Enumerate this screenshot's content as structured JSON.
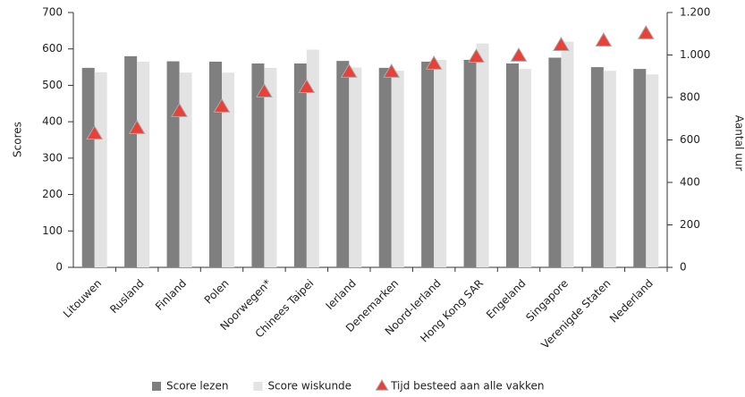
{
  "chart_data": {
    "type": "bar",
    "ylabel": "Scores",
    "y2label": "Aantal uur",
    "categories": [
      "Litouwen",
      "Rusland",
      "Finland",
      "Polen",
      "Noorwegen*",
      "Chinees Taipei",
      "Ierland",
      "Denemarken",
      "Noord-Ierland",
      "Hong Kong SAR",
      "Engeland",
      "Singapore",
      "Verenigde Staten",
      "Nederland"
    ],
    "series": [
      {
        "name": "Score lezen",
        "color": "#7f7f7f",
        "values": [
          548,
          580,
          566,
          565,
          560,
          560,
          567,
          548,
          565,
          570,
          560,
          576,
          550,
          545
        ]
      },
      {
        "name": "Score wiskunde",
        "color": "#e3e3e3",
        "values": [
          536,
          565,
          535,
          535,
          548,
          598,
          549,
          540,
          570,
          615,
          545,
          620,
          540,
          530
        ]
      },
      {
        "name": "Tijd besteed aan alle vakken",
        "color": "#e8413a",
        "axis": "y2",
        "marker": "triangle",
        "values": [
          627,
          653,
          733,
          754,
          825,
          846,
          918,
          918,
          956,
          989,
          994,
          1044,
          1065,
          1099
        ]
      }
    ],
    "ylim": [
      0,
      700
    ],
    "yticks": [
      0,
      100,
      200,
      300,
      400,
      500,
      600,
      700
    ],
    "y2lim": [
      0,
      1200
    ],
    "y2ticks": [
      0,
      200,
      400,
      600,
      800,
      {
        "value": 1000,
        "label": "1.000"
      },
      {
        "value": 1200,
        "label": "1.200"
      }
    ],
    "grid": false,
    "legend": "bottom"
  }
}
